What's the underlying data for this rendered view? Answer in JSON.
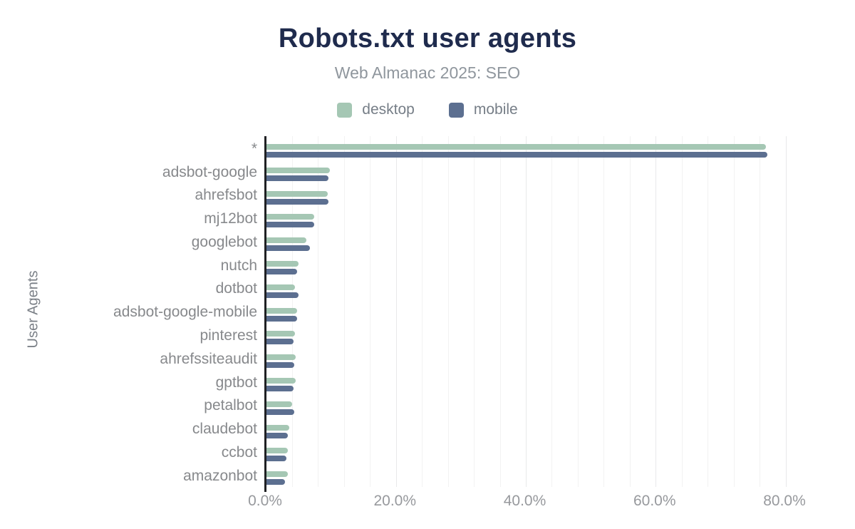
{
  "title": "Robots.txt user agents",
  "subtitle": "Web Almanac 2025: SEO",
  "legend": [
    {
      "label": "desktop",
      "color": "#a5c7b4"
    },
    {
      "label": "mobile",
      "color": "#5c6f90"
    }
  ],
  "palette": {
    "background": "#ffffff",
    "title": "#1f2b4d",
    "subtitle": "#8f969d",
    "legend_text": "#767e87",
    "category_text": "#87898c",
    "tick_text": "#97999d",
    "y_title_text": "#7b8087",
    "axis_line": "#202124",
    "grid_minor": "#f2f2f2",
    "grid_major": "#e8e9ea"
  },
  "chart_data": {
    "type": "bar",
    "orientation": "horizontal",
    "title": "Robots.txt user agents",
    "subtitle": "Web Almanac 2025: SEO",
    "xlabel": "",
    "ylabel": "User Agents",
    "xlim": [
      0,
      80
    ],
    "x_unit": "%",
    "x_tick_labels": [
      "0.0%",
      "20.0%",
      "40.0%",
      "60.0%",
      "80.0%"
    ],
    "grid": {
      "minor_step_pct": 4,
      "major_step_pct": 20,
      "show": true
    },
    "legend_position": "top-center",
    "categories": [
      "*",
      "adsbot-google",
      "ahrefsbot",
      "mj12bot",
      "googlebot",
      "nutch",
      "dotbot",
      "adsbot-google-mobile",
      "pinterest",
      "ahrefssiteaudit",
      "gptbot",
      "petalbot",
      "claudebot",
      "ccbot",
      "amazonbot"
    ],
    "series": [
      {
        "name": "desktop",
        "color": "#a5c7b4",
        "values": [
          76.9,
          9.8,
          9.4,
          7.4,
          6.1,
          4.9,
          4.4,
          4.7,
          4.4,
          4.5,
          4.5,
          4.0,
          3.5,
          3.3,
          3.3
        ]
      },
      {
        "name": "mobile",
        "color": "#5c6f90",
        "values": [
          77.1,
          9.5,
          9.6,
          7.3,
          6.7,
          4.7,
          4.9,
          4.7,
          4.2,
          4.3,
          4.2,
          4.3,
          3.3,
          3.1,
          2.9
        ]
      }
    ]
  }
}
